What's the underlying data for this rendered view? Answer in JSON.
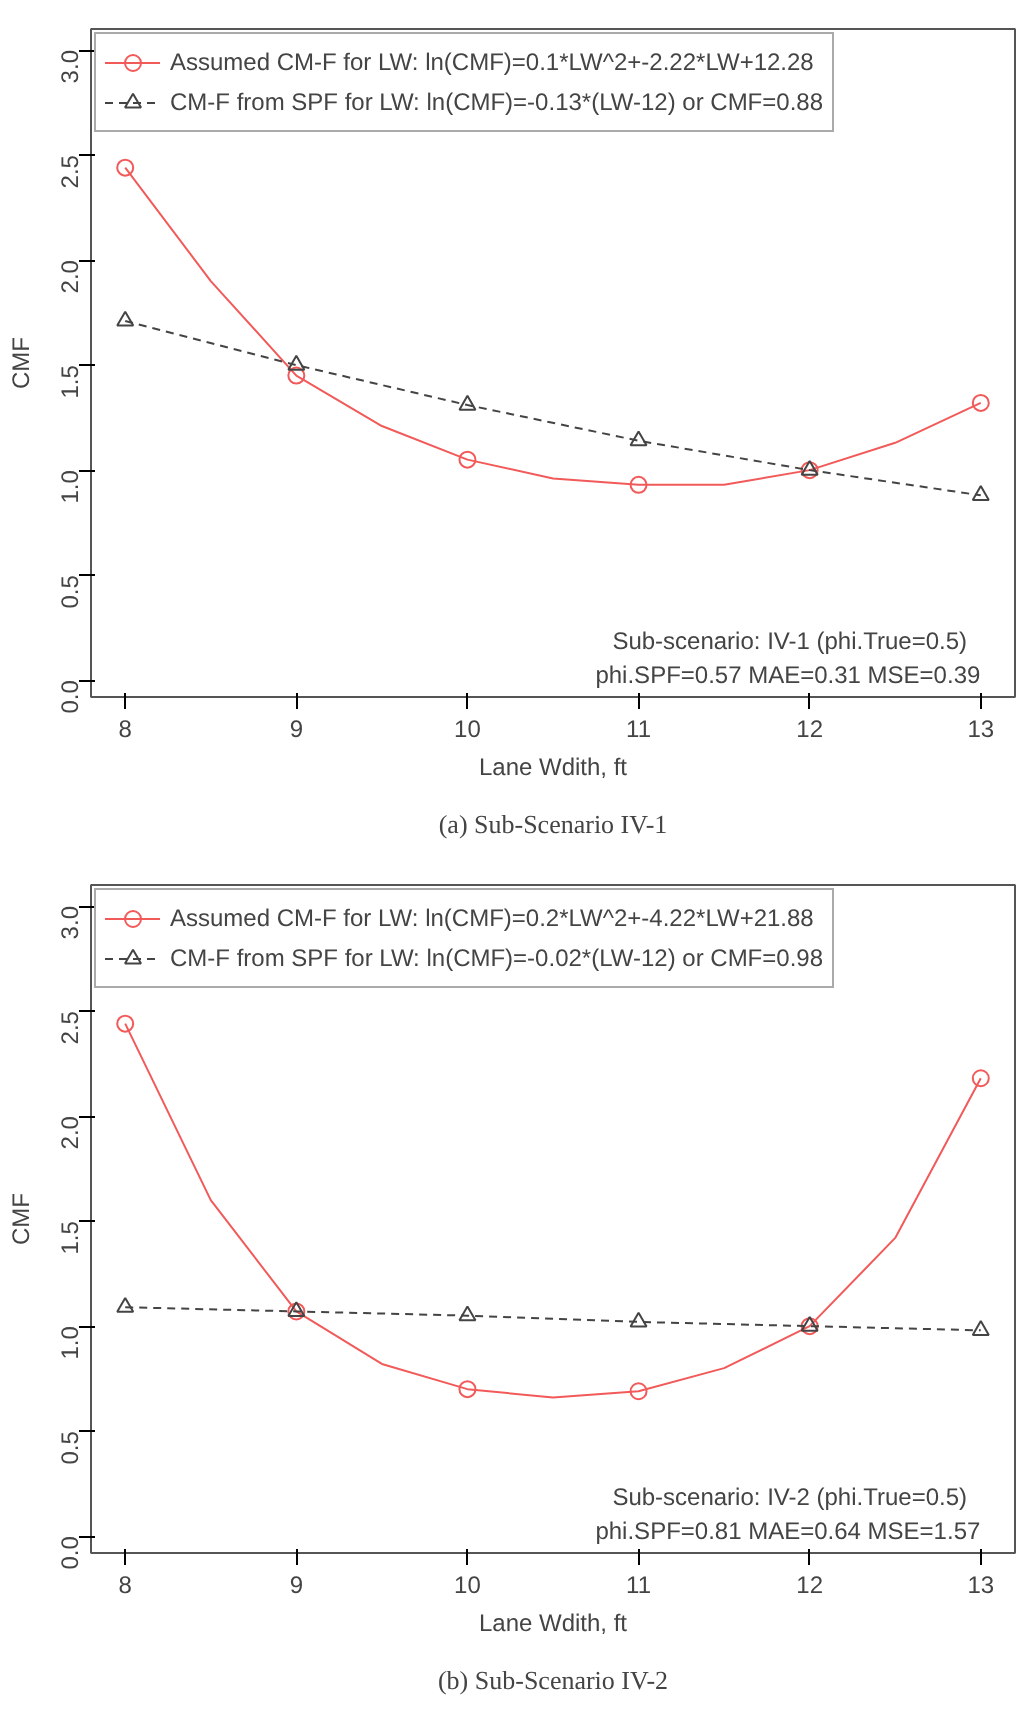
{
  "chart_data": [
    {
      "type": "line",
      "ylabel": "CMF",
      "xlabel": "Lane Wdith, ft",
      "x": [
        8,
        9,
        10,
        11,
        12,
        13
      ],
      "xlim": [
        7.8,
        13.2
      ],
      "xticks": [
        8,
        9,
        10,
        11,
        12,
        13
      ],
      "ylim": [
        -0.08,
        3.1
      ],
      "yticks": [
        {
          "value": 0,
          "label": "0.0"
        },
        {
          "value": 0.5,
          "label": "0.5"
        },
        {
          "value": 1,
          "label": "1.0"
        },
        {
          "value": 1.5,
          "label": "1.5"
        },
        {
          "value": 2,
          "label": "2.0"
        },
        {
          "value": 2.5,
          "label": "2.5"
        },
        {
          "value": 3,
          "label": "3.0"
        }
      ],
      "grid": false,
      "legend": "top",
      "series": [
        {
          "type": "line",
          "color": "#f25a5a",
          "marker": "none",
          "line_style": "solid",
          "x": [
            8,
            8.5,
            9,
            9.5,
            10,
            10.5,
            11,
            11.5,
            12,
            12.5,
            13
          ],
          "values": [
            2.44,
            1.9,
            1.45,
            1.21,
            1.05,
            0.96,
            0.93,
            0.93,
            1.0,
            1.13,
            1.32
          ]
        },
        {
          "type": "scatter",
          "name": "Assumed CM-F for LW: ln(CMF)=0.1*LW^2+-2.22*LW+12.28",
          "color": "#f25a5a",
          "marker": "circle",
          "values": [
            2.44,
            1.45,
            1.05,
            0.93,
            1.0,
            1.32
          ]
        },
        {
          "name": "CM-F from SPF for LW: ln(CMF)=-0.13*(LW-12) or CMF=0.88",
          "color": "#444444",
          "marker": "triangle",
          "line_style": "dashed",
          "values": [
            1.71,
            1.5,
            1.31,
            1.14,
            1.0,
            0.88
          ]
        }
      ],
      "annotations": [
        "Sub-scenario: IV-1 (phi.True=0.5)",
        "phi.SPF=0.57   MAE=0.31   MSE=0.39",
        "(a) Sub-Scenario IV-1"
      ]
    },
    {
      "type": "line",
      "ylabel": "CMF",
      "xlabel": "Lane Wdith, ft",
      "x": [
        8,
        9,
        10,
        11,
        12,
        13
      ],
      "xlim": [
        7.8,
        13.2
      ],
      "xticks": [
        8,
        9,
        10,
        11,
        12,
        13
      ],
      "ylim": [
        -0.08,
        3.1
      ],
      "yticks": [
        {
          "value": 0,
          "label": "0.0"
        },
        {
          "value": 0.5,
          "label": "0.5"
        },
        {
          "value": 1,
          "label": "1.0"
        },
        {
          "value": 1.5,
          "label": "1.5"
        },
        {
          "value": 2,
          "label": "2.0"
        },
        {
          "value": 2.5,
          "label": "2.5"
        },
        {
          "value": 3,
          "label": "3.0"
        }
      ],
      "grid": false,
      "legend": "top",
      "series": [
        {
          "type": "line",
          "color": "#f25a5a",
          "marker": "none",
          "line_style": "solid",
          "x": [
            8,
            8.5,
            9,
            9.5,
            10,
            10.5,
            11,
            11.5,
            12,
            12.5,
            13
          ],
          "values": [
            2.44,
            1.6,
            1.07,
            0.82,
            0.7,
            0.66,
            0.69,
            0.8,
            1.0,
            1.42,
            2.18
          ]
        },
        {
          "type": "scatter",
          "name": "Assumed CM-F for LW: ln(CMF)=0.2*LW^2+-4.22*LW+21.88",
          "color": "#f25a5a",
          "marker": "circle",
          "values": [
            2.44,
            1.07,
            0.7,
            0.69,
            1.0,
            2.18
          ]
        },
        {
          "name": "CM-F from SPF for LW: ln(CMF)=-0.02*(LW-12) or CMF=0.98",
          "color": "#444444",
          "marker": "triangle",
          "line_style": "dashed",
          "values": [
            1.09,
            1.07,
            1.05,
            1.02,
            1.0,
            0.98
          ]
        }
      ],
      "annotations": [
        "Sub-scenario: IV-2 (phi.True=0.5)",
        "phi.SPF=0.81   MAE=0.64   MSE=1.57",
        "(b) Sub-Scenario IV-2"
      ]
    }
  ]
}
